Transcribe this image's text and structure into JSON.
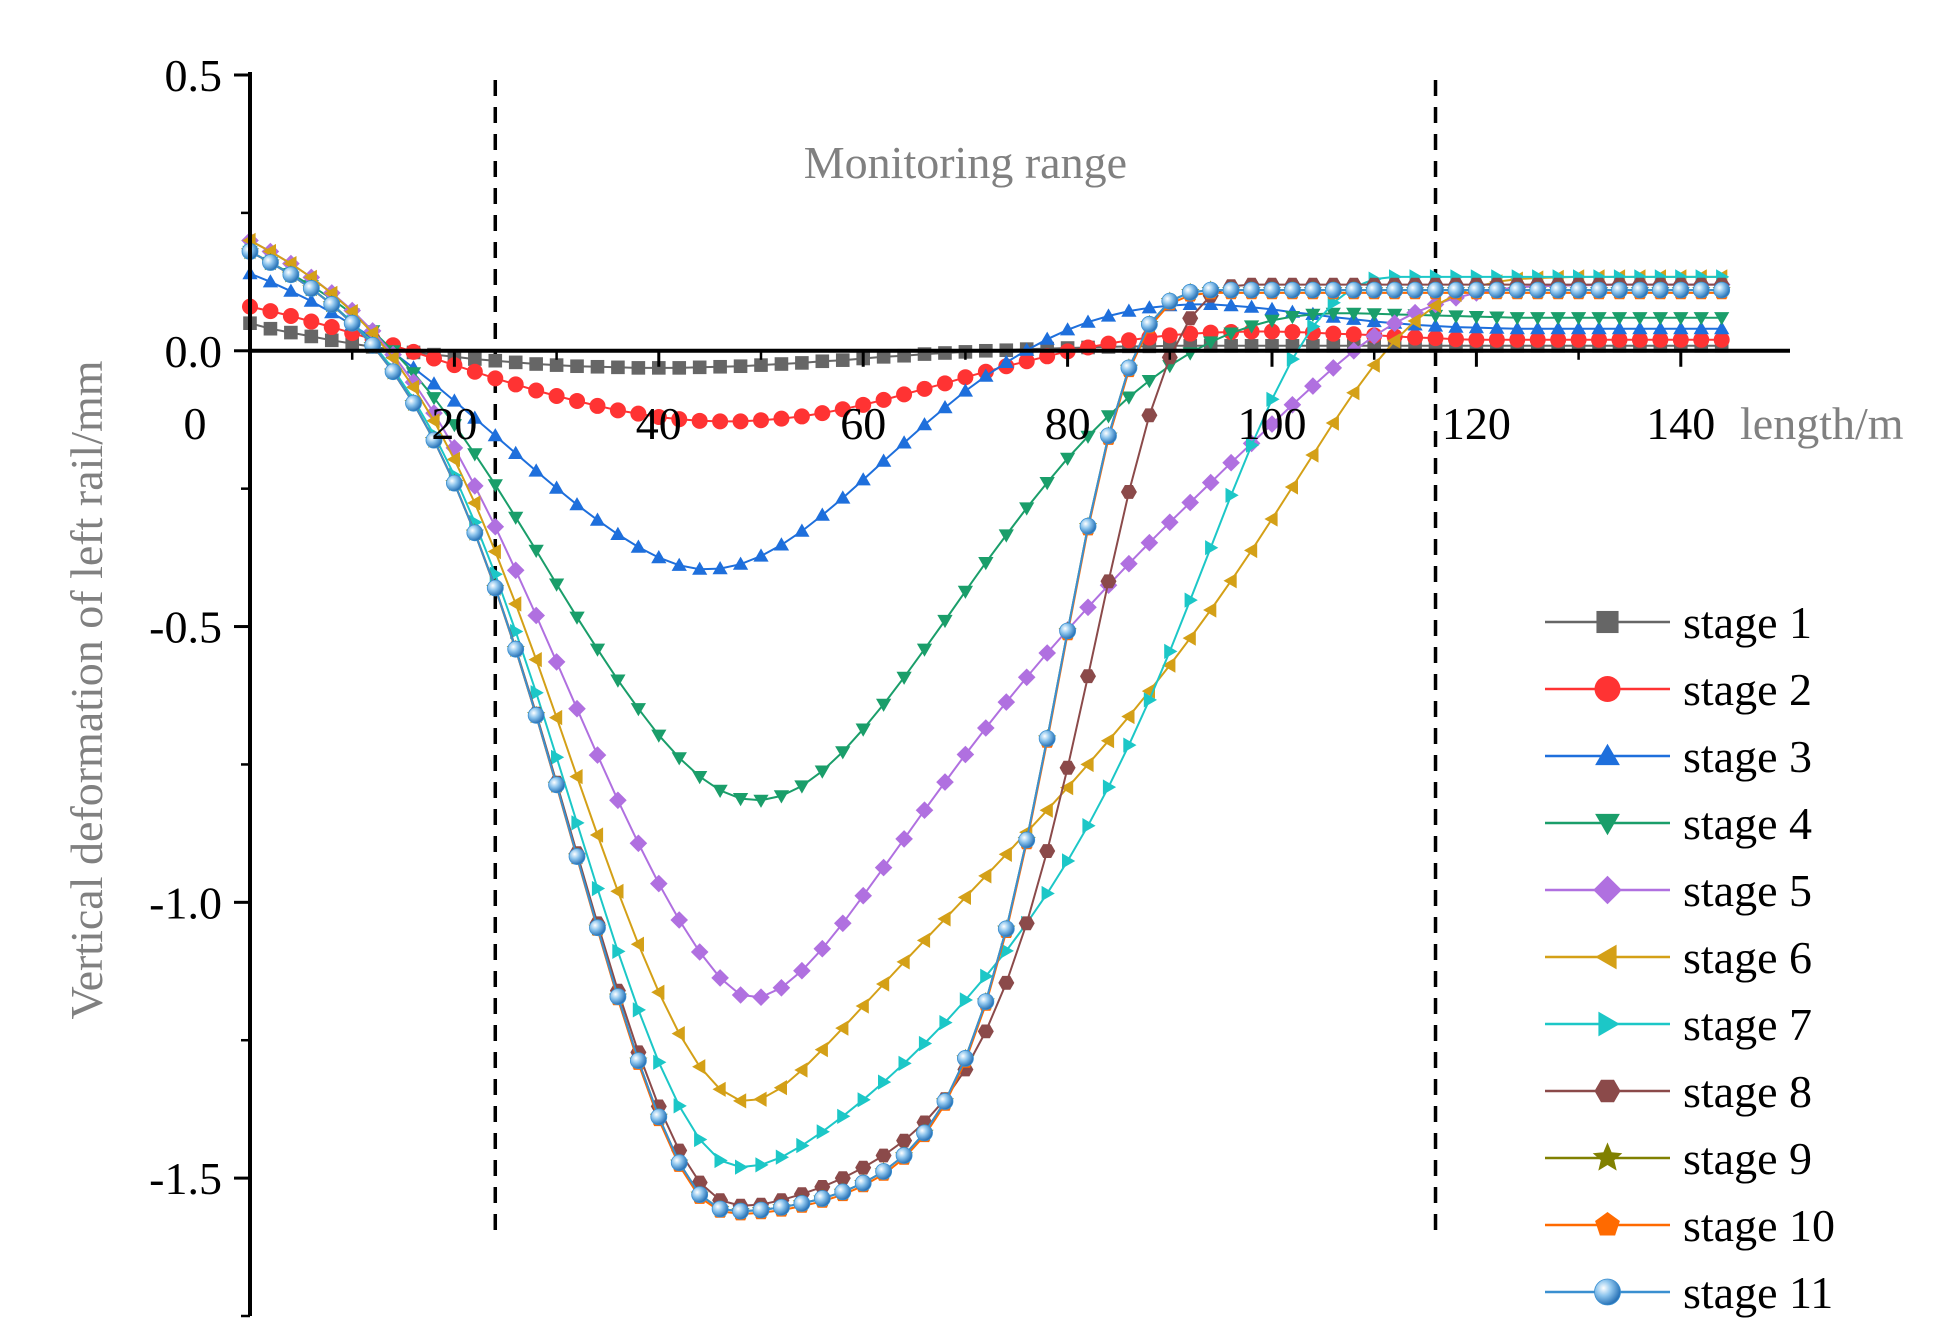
{
  "chart_data": {
    "type": "line",
    "title": "",
    "xlabel": "length/m",
    "ylabel": "Vertical deformation of left rail/mm",
    "xlim": [
      0,
      150
    ],
    "ylim": [
      -1.75,
      0.5
    ],
    "x_ticks": [
      0,
      20,
      40,
      60,
      80,
      100,
      120,
      140
    ],
    "x_tick_labels": [
      "0",
      "20",
      "40",
      "60",
      "80",
      "100",
      "120",
      "140"
    ],
    "y_ticks": [
      0.5,
      0.0,
      -0.5,
      -1.0,
      -1.5
    ],
    "y_tick_labels": [
      "0.5",
      "0.0",
      "-0.5",
      "-1.0",
      "-1.5"
    ],
    "annotation": "Monitoring range",
    "monitoring_range_x": [
      24,
      116
    ],
    "legend_position": "bottom-right",
    "x": [
      0,
      2,
      4,
      6,
      8,
      10,
      12,
      14,
      16,
      18,
      20,
      22,
      24,
      26,
      28,
      30,
      32,
      34,
      36,
      38,
      40,
      42,
      44,
      46,
      48,
      50,
      52,
      54,
      56,
      58,
      60,
      62,
      64,
      66,
      68,
      70,
      72,
      74,
      76,
      78,
      80,
      82,
      84,
      86,
      88,
      90,
      92,
      94,
      96,
      98,
      100,
      102,
      104,
      106,
      108,
      110,
      112,
      114,
      116,
      118,
      120,
      122,
      124,
      126,
      128,
      130,
      132,
      134,
      136,
      138,
      140,
      142,
      144
    ],
    "series": [
      {
        "name": "stage 1",
        "color": "#666666",
        "marker": "square",
        "values": [
          0.05,
          0.04,
          0.033,
          0.026,
          0.019,
          0.013,
          0.007,
          0.002,
          -0.003,
          -0.007,
          -0.011,
          -0.015,
          -0.018,
          -0.021,
          -0.024,
          -0.026,
          -0.028,
          -0.029,
          -0.03,
          -0.031,
          -0.031,
          -0.031,
          -0.03,
          -0.029,
          -0.028,
          -0.026,
          -0.024,
          -0.022,
          -0.019,
          -0.017,
          -0.014,
          -0.011,
          -0.009,
          -0.006,
          -0.004,
          -0.002,
          0,
          0.001,
          0.003,
          0.004,
          0.005,
          0.006,
          0.007,
          0.008,
          0.008,
          0.009,
          0.009,
          0.009,
          0.009,
          0.009,
          0.009,
          0.009,
          0.009,
          0.009,
          0.009,
          0.009,
          0.009,
          0.009,
          0.009,
          0.009,
          0.009,
          0.009,
          0.009,
          0.009,
          0.009,
          0.009,
          0.009,
          0.009,
          0.009,
          0.009,
          0.009,
          0.009,
          0.009
        ]
      },
      {
        "name": "stage 2",
        "color": "#ff3333",
        "marker": "circle",
        "values": [
          0.08,
          0.072,
          0.063,
          0.053,
          0.043,
          0.032,
          0.021,
          0.01,
          -0.002,
          -0.014,
          -0.026,
          -0.038,
          -0.05,
          -0.061,
          -0.072,
          -0.082,
          -0.091,
          -0.1,
          -0.108,
          -0.114,
          -0.12,
          -0.124,
          -0.127,
          -0.128,
          -0.128,
          -0.126,
          -0.123,
          -0.119,
          -0.113,
          -0.106,
          -0.098,
          -0.089,
          -0.079,
          -0.069,
          -0.059,
          -0.048,
          -0.038,
          -0.028,
          -0.019,
          -0.01,
          -0.001,
          0.006,
          0.013,
          0.019,
          0.024,
          0.028,
          0.031,
          0.033,
          0.034,
          0.035,
          0.035,
          0.034,
          0.033,
          0.031,
          0.03,
          0.028,
          0.026,
          0.024,
          0.023,
          0.021,
          0.02,
          0.02,
          0.02,
          0.02,
          0.02,
          0.02,
          0.02,
          0.02,
          0.02,
          0.02,
          0.02,
          0.02,
          0.02
        ]
      },
      {
        "name": "stage 3",
        "color": "#1e6fdc",
        "marker": "triangle-up",
        "values": [
          0.14,
          0.125,
          0.108,
          0.09,
          0.069,
          0.047,
          0.023,
          -0.003,
          -0.031,
          -0.06,
          -0.091,
          -0.122,
          -0.154,
          -0.186,
          -0.218,
          -0.249,
          -0.279,
          -0.307,
          -0.333,
          -0.356,
          -0.375,
          -0.389,
          -0.396,
          -0.395,
          -0.387,
          -0.372,
          -0.352,
          -0.327,
          -0.298,
          -0.267,
          -0.234,
          -0.2,
          -0.167,
          -0.134,
          -0.103,
          -0.073,
          -0.046,
          -0.021,
          0.001,
          0.021,
          0.038,
          0.052,
          0.063,
          0.072,
          0.078,
          0.082,
          0.084,
          0.084,
          0.082,
          0.079,
          0.075,
          0.07,
          0.066,
          0.061,
          0.057,
          0.053,
          0.05,
          0.047,
          0.045,
          0.043,
          0.042,
          0.041,
          0.04,
          0.04,
          0.04,
          0.04,
          0.04,
          0.04,
          0.04,
          0.04,
          0.04,
          0.04,
          0.04
        ]
      },
      {
        "name": "stage 4",
        "color": "#1a9e6a",
        "marker": "triangle-down",
        "values": [
          0.18,
          0.16,
          0.14,
          0.118,
          0.094,
          0.067,
          0.036,
          0,
          -0.04,
          -0.085,
          -0.134,
          -0.187,
          -0.243,
          -0.302,
          -0.362,
          -0.423,
          -0.483,
          -0.541,
          -0.597,
          -0.649,
          -0.697,
          -0.738,
          -0.772,
          -0.797,
          -0.812,
          -0.815,
          -0.807,
          -0.789,
          -0.762,
          -0.727,
          -0.686,
          -0.641,
          -0.592,
          -0.541,
          -0.489,
          -0.436,
          -0.384,
          -0.334,
          -0.285,
          -0.239,
          -0.195,
          -0.155,
          -0.118,
          -0.084,
          -0.054,
          -0.027,
          -0.004,
          0.016,
          0.032,
          0.045,
          0.055,
          0.062,
          0.066,
          0.068,
          0.068,
          0.067,
          0.066,
          0.065,
          0.064,
          0.063,
          0.062,
          0.061,
          0.06,
          0.06,
          0.06,
          0.06,
          0.06,
          0.06,
          0.06,
          0.06,
          0.06,
          0.06,
          0.06
        ]
      },
      {
        "name": "stage 5",
        "color": "#b070e0",
        "marker": "diamond",
        "values": [
          0.2,
          0.18,
          0.158,
          0.133,
          0.105,
          0.073,
          0.036,
          -0.007,
          -0.057,
          -0.113,
          -0.176,
          -0.245,
          -0.319,
          -0.398,
          -0.48,
          -0.564,
          -0.649,
          -0.733,
          -0.815,
          -0.893,
          -0.966,
          -1.032,
          -1.09,
          -1.137,
          -1.168,
          -1.172,
          -1.155,
          -1.124,
          -1.084,
          -1.038,
          -0.988,
          -0.937,
          -0.885,
          -0.833,
          -0.782,
          -0.732,
          -0.684,
          -0.637,
          -0.592,
          -0.548,
          -0.506,
          -0.465,
          -0.425,
          -0.386,
          -0.348,
          -0.311,
          -0.275,
          -0.239,
          -0.203,
          -0.168,
          -0.133,
          -0.098,
          -0.064,
          -0.031,
          0,
          0.027,
          0.05,
          0.069,
          0.084,
          0.096,
          0.105,
          0.111,
          0.115,
          0.117,
          0.118,
          0.119,
          0.119,
          0.12,
          0.12,
          0.12,
          0.12,
          0.12,
          0.12
        ]
      },
      {
        "name": "stage 6",
        "color": "#d4a017",
        "marker": "triangle-left",
        "values": [
          0.2,
          0.18,
          0.158,
          0.133,
          0.104,
          0.071,
          0.032,
          -0.013,
          -0.066,
          -0.127,
          -0.197,
          -0.276,
          -0.364,
          -0.459,
          -0.56,
          -0.665,
          -0.772,
          -0.878,
          -0.98,
          -1.076,
          -1.163,
          -1.238,
          -1.298,
          -1.339,
          -1.36,
          -1.357,
          -1.336,
          -1.304,
          -1.267,
          -1.228,
          -1.188,
          -1.148,
          -1.108,
          -1.069,
          -1.03,
          -0.991,
          -0.952,
          -0.913,
          -0.873,
          -0.833,
          -0.792,
          -0.75,
          -0.707,
          -0.663,
          -0.617,
          -0.57,
          -0.521,
          -0.47,
          -0.417,
          -0.362,
          -0.305,
          -0.247,
          -0.189,
          -0.131,
          -0.076,
          -0.026,
          0.018,
          0.054,
          0.082,
          0.102,
          0.116,
          0.125,
          0.13,
          0.132,
          0.133,
          0.134,
          0.134,
          0.134,
          0.134,
          0.134,
          0.134,
          0.134,
          0.134
        ]
      },
      {
        "name": "stage 7",
        "color": "#1cc7c7",
        "marker": "triangle-right",
        "values": [
          0.18,
          0.16,
          0.138,
          0.113,
          0.085,
          0.052,
          0.013,
          -0.033,
          -0.088,
          -0.152,
          -0.226,
          -0.311,
          -0.405,
          -0.509,
          -0.62,
          -0.737,
          -0.856,
          -0.975,
          -1.089,
          -1.195,
          -1.29,
          -1.369,
          -1.43,
          -1.468,
          -1.48,
          -1.476,
          -1.462,
          -1.441,
          -1.416,
          -1.388,
          -1.358,
          -1.326,
          -1.292,
          -1.256,
          -1.218,
          -1.177,
          -1.134,
          -1.088,
          -1.038,
          -0.984,
          -0.925,
          -0.861,
          -0.791,
          -0.715,
          -0.633,
          -0.545,
          -0.452,
          -0.357,
          -0.262,
          -0.171,
          -0.088,
          -0.015,
          0.044,
          0.087,
          0.115,
          0.13,
          0.134,
          0.134,
          0.134,
          0.134,
          0.134,
          0.134,
          0.134,
          0.134,
          0.134,
          0.134,
          0.134,
          0.134,
          0.134,
          0.134,
          0.134,
          0.134,
          0.134
        ]
      },
      {
        "name": "stage 8",
        "color": "#8b4a4a",
        "marker": "hexagon",
        "values": [
          0.18,
          0.16,
          0.138,
          0.113,
          0.084,
          0.05,
          0.01,
          -0.038,
          -0.095,
          -0.162,
          -0.24,
          -0.329,
          -0.429,
          -0.539,
          -0.658,
          -0.783,
          -0.911,
          -1.038,
          -1.16,
          -1.272,
          -1.37,
          -1.45,
          -1.508,
          -1.54,
          -1.55,
          -1.548,
          -1.54,
          -1.529,
          -1.516,
          -1.5,
          -1.481,
          -1.459,
          -1.432,
          -1.399,
          -1.357,
          -1.303,
          -1.234,
          -1.146,
          -1.038,
          -0.907,
          -0.756,
          -0.59,
          -0.418,
          -0.256,
          -0.117,
          -0.012,
          0.059,
          0.1,
          0.117,
          0.12,
          0.12,
          0.12,
          0.12,
          0.12,
          0.12,
          0.12,
          0.12,
          0.12,
          0.12,
          0.12,
          0.12,
          0.12,
          0.12,
          0.12,
          0.12,
          0.12,
          0.12,
          0.12,
          0.12,
          0.12,
          0.12,
          0.12,
          0.12
        ]
      },
      {
        "name": "stage 9",
        "color": "#808000",
        "marker": "star",
        "values": [
          0.18,
          0.16,
          0.138,
          0.113,
          0.084,
          0.05,
          0.01,
          -0.038,
          -0.095,
          -0.162,
          -0.24,
          -0.33,
          -0.43,
          -0.541,
          -0.661,
          -0.787,
          -0.917,
          -1.046,
          -1.171,
          -1.287,
          -1.389,
          -1.472,
          -1.53,
          -1.556,
          -1.56,
          -1.558,
          -1.553,
          -1.546,
          -1.537,
          -1.525,
          -1.509,
          -1.488,
          -1.459,
          -1.418,
          -1.361,
          -1.283,
          -1.18,
          -1.048,
          -0.887,
          -0.703,
          -0.508,
          -0.318,
          -0.154,
          -0.031,
          0.048,
          0.09,
          0.106,
          0.11,
          0.11,
          0.11,
          0.11,
          0.11,
          0.11,
          0.11,
          0.11,
          0.11,
          0.11,
          0.11,
          0.11,
          0.11,
          0.11,
          0.11,
          0.11,
          0.11,
          0.11,
          0.11,
          0.11,
          0.11,
          0.11,
          0.11,
          0.11,
          0.11,
          0.11
        ]
      },
      {
        "name": "stage 10",
        "color": "#ff6a00",
        "marker": "pentagon",
        "values": [
          0.18,
          0.16,
          0.138,
          0.113,
          0.084,
          0.05,
          0.01,
          -0.038,
          -0.095,
          -0.162,
          -0.24,
          -0.33,
          -0.431,
          -0.542,
          -0.662,
          -0.789,
          -0.919,
          -1.049,
          -1.175,
          -1.292,
          -1.394,
          -1.477,
          -1.535,
          -1.56,
          -1.565,
          -1.563,
          -1.558,
          -1.551,
          -1.542,
          -1.53,
          -1.514,
          -1.493,
          -1.464,
          -1.423,
          -1.366,
          -1.288,
          -1.185,
          -1.053,
          -0.892,
          -0.708,
          -0.513,
          -0.323,
          -0.159,
          -0.036,
          0.043,
          0.085,
          0.101,
          0.105,
          0.105,
          0.105,
          0.105,
          0.105,
          0.105,
          0.105,
          0.105,
          0.105,
          0.105,
          0.105,
          0.105,
          0.105,
          0.105,
          0.105,
          0.105,
          0.105,
          0.105,
          0.105,
          0.105,
          0.105,
          0.105,
          0.105,
          0.105,
          0.105,
          0.105
        ]
      },
      {
        "name": "stage 11",
        "color": "#3a8fd0",
        "marker": "sphere",
        "values": [
          0.18,
          0.16,
          0.138,
          0.113,
          0.084,
          0.05,
          0.01,
          -0.038,
          -0.095,
          -0.162,
          -0.24,
          -0.33,
          -0.43,
          -0.541,
          -0.661,
          -0.787,
          -0.917,
          -1.046,
          -1.171,
          -1.287,
          -1.389,
          -1.472,
          -1.53,
          -1.556,
          -1.56,
          -1.558,
          -1.553,
          -1.546,
          -1.537,
          -1.525,
          -1.509,
          -1.488,
          -1.459,
          -1.418,
          -1.361,
          -1.283,
          -1.18,
          -1.048,
          -0.887,
          -0.703,
          -0.508,
          -0.318,
          -0.154,
          -0.031,
          0.048,
          0.09,
          0.106,
          0.11,
          0.11,
          0.11,
          0.11,
          0.11,
          0.11,
          0.11,
          0.11,
          0.11,
          0.11,
          0.11,
          0.11,
          0.11,
          0.11,
          0.11,
          0.11,
          0.11,
          0.11,
          0.11,
          0.11,
          0.11,
          0.11,
          0.11,
          0.11,
          0.11,
          0.11
        ]
      }
    ]
  }
}
